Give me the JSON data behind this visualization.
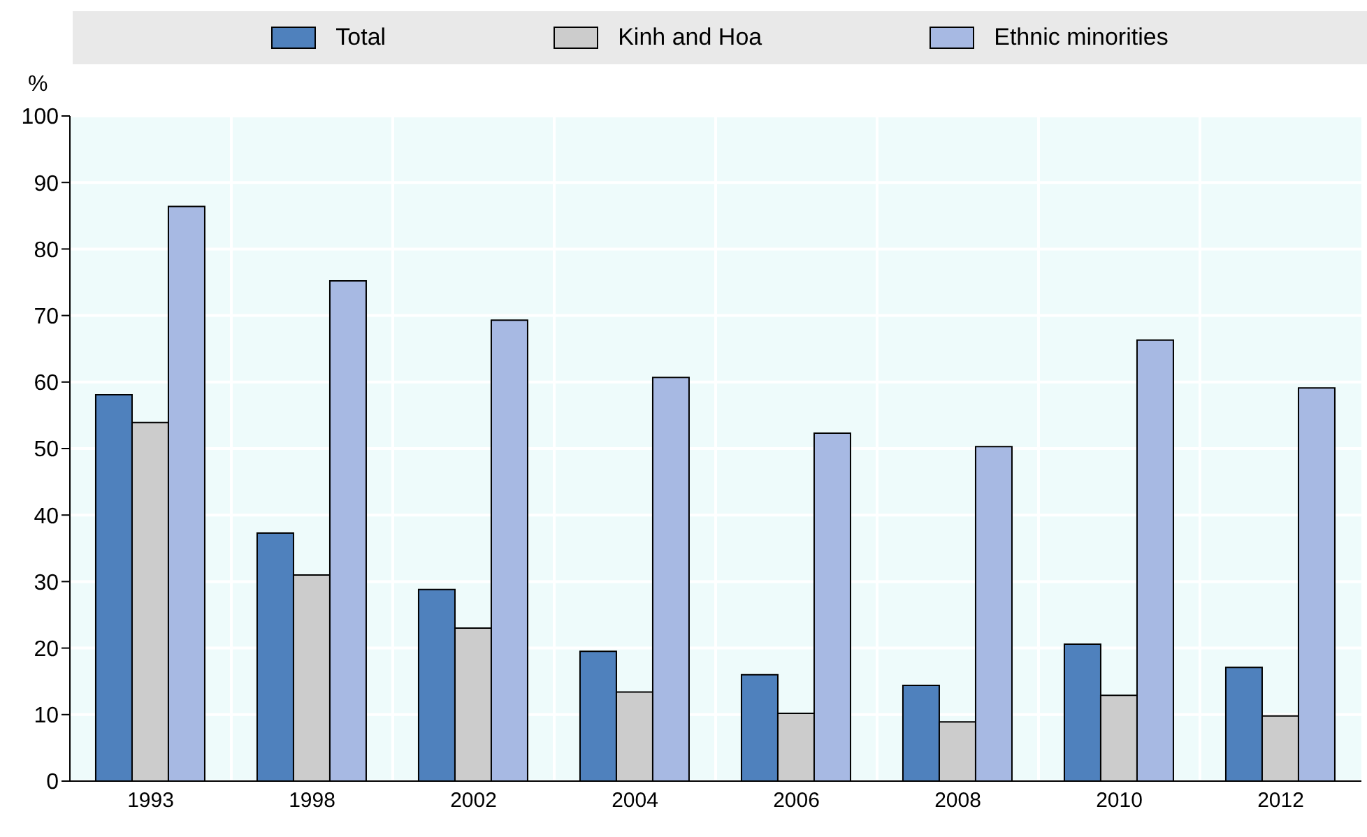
{
  "chart_data": {
    "type": "bar",
    "ylabel": "%",
    "categories": [
      "1993",
      "1998",
      "2002",
      "2004",
      "2006",
      "2008",
      "2010",
      "2012"
    ],
    "series": [
      {
        "name": "Total",
        "color": "#4f81bd",
        "values": [
          58.1,
          37.3,
          28.8,
          19.5,
          16.0,
          14.4,
          20.6,
          17.1
        ]
      },
      {
        "name": "Kinh and Hoa",
        "color": "#cccccc",
        "values": [
          53.9,
          31.0,
          23.0,
          13.4,
          10.2,
          8.9,
          12.9,
          9.8
        ]
      },
      {
        "name": "Ethnic minorities",
        "color": "#a7b9e3",
        "values": [
          86.4,
          75.2,
          69.3,
          60.7,
          52.3,
          50.3,
          66.3,
          59.1
        ]
      }
    ],
    "ylim": [
      0,
      100
    ],
    "yticks": [
      0,
      10,
      20,
      30,
      40,
      50,
      60,
      70,
      80,
      90,
      100
    ],
    "grid": true,
    "legend": "top"
  }
}
